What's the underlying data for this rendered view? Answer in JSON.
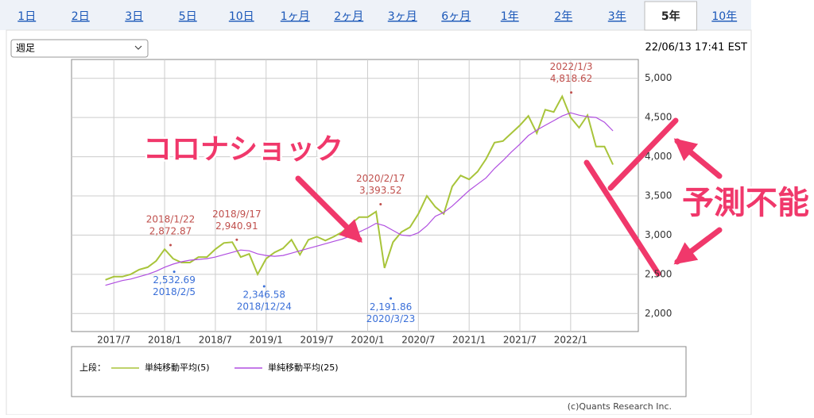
{
  "tabs": [
    "1日",
    "2日",
    "3日",
    "5日",
    "10日",
    "1ヶ月",
    "2ヶ月",
    "3ヶ月",
    "6ヶ月",
    "1年",
    "2年",
    "3年",
    "5年",
    "10年"
  ],
  "active_tab": 12,
  "period_select": "週足",
  "timestamp": "22/06/13 17:41 EST",
  "chart_data": {
    "type": "line",
    "x": [
      "2017/6",
      "2017/7",
      "2017/8",
      "2017/9",
      "2017/10",
      "2017/11",
      "2017/12",
      "2018/1",
      "2018/2",
      "2018/3",
      "2018/4",
      "2018/5",
      "2018/6",
      "2018/7",
      "2018/8",
      "2018/9",
      "2018/10",
      "2018/11",
      "2018/12",
      "2019/1",
      "2019/2",
      "2019/3",
      "2019/4",
      "2019/5",
      "2019/6",
      "2019/7",
      "2019/8",
      "2019/9",
      "2019/10",
      "2019/11",
      "2019/12",
      "2020/1",
      "2020/2",
      "2020/3",
      "2020/4",
      "2020/5",
      "2020/6",
      "2020/7",
      "2020/8",
      "2020/9",
      "2020/10",
      "2020/11",
      "2020/12",
      "2021/1",
      "2021/2",
      "2021/3",
      "2021/4",
      "2021/5",
      "2021/6",
      "2021/7",
      "2021/8",
      "2021/9",
      "2021/10",
      "2021/11",
      "2021/12",
      "2022/1",
      "2022/2",
      "2022/3",
      "2022/4",
      "2022/5",
      "2022/6"
    ],
    "series": [
      {
        "name": "単純移動平均(5)",
        "color": "#a8c43a",
        "values": [
          2430,
          2470,
          2470,
          2500,
          2560,
          2590,
          2670,
          2820,
          2700,
          2650,
          2650,
          2720,
          2720,
          2820,
          2900,
          2910,
          2720,
          2760,
          2500,
          2700,
          2780,
          2830,
          2940,
          2750,
          2940,
          2980,
          2930,
          2980,
          3040,
          3140,
          3230,
          3230,
          3300,
          2580,
          2910,
          3040,
          3100,
          3270,
          3500,
          3360,
          3270,
          3620,
          3760,
          3710,
          3810,
          3970,
          4180,
          4200,
          4300,
          4400,
          4520,
          4300,
          4600,
          4570,
          4770,
          4500,
          4370,
          4530,
          4130,
          4130,
          3900
        ]
      },
      {
        "name": "単純移動平均(25)",
        "color": "#b04ee0",
        "values": [
          2360,
          2390,
          2420,
          2440,
          2470,
          2500,
          2540,
          2590,
          2630,
          2660,
          2680,
          2690,
          2700,
          2720,
          2750,
          2780,
          2810,
          2800,
          2760,
          2740,
          2730,
          2740,
          2770,
          2800,
          2830,
          2860,
          2890,
          2920,
          2950,
          2990,
          3040,
          3090,
          3150,
          3120,
          3060,
          3000,
          2990,
          3030,
          3120,
          3240,
          3290,
          3370,
          3470,
          3570,
          3650,
          3730,
          3850,
          3950,
          4060,
          4160,
          4270,
          4340,
          4400,
          4460,
          4520,
          4560,
          4530,
          4510,
          4500,
          4440,
          4330
        ]
      }
    ],
    "xlim": [
      "2017/2",
      "2022/9"
    ],
    "ylim": [
      1770,
      5240
    ],
    "xticks": [
      "2017/7",
      "2018/1",
      "2018/7",
      "2019/1",
      "2019/7",
      "2020/1",
      "2020/7",
      "2021/1",
      "2021/7",
      "2022/1"
    ],
    "yticks": [
      {
        "value": 2000,
        "label": "2,000"
      },
      {
        "value": 2500,
        "label": "2,500"
      },
      {
        "value": 3000,
        "label": "3,000"
      },
      {
        "value": 3500,
        "label": "3,500"
      },
      {
        "value": 4000,
        "label": "4,000"
      },
      {
        "value": 4500,
        "label": "4,500"
      },
      {
        "value": 5000,
        "label": "5,000"
      }
    ],
    "grid": true,
    "legend_prefix": "上段：",
    "annotations": [
      {
        "date": "2018/1/22",
        "value": 2872.87,
        "label": "2,872.87",
        "color": "#c0504d"
      },
      {
        "date": "2018/9/17",
        "value": 2940.91,
        "label": "2,940.91",
        "color": "#c0504d"
      },
      {
        "date": "2020/2/17",
        "value": 3393.52,
        "label": "3,393.52",
        "color": "#c0504d"
      },
      {
        "date": "2022/1/3",
        "value": 4818.62,
        "label": "4,818.62",
        "color": "#c0504d"
      },
      {
        "date": "2018/2/5",
        "value": 2532.69,
        "label": "2,532.69",
        "color": "#3a6fd8"
      },
      {
        "date": "2018/12/24",
        "value": 2346.58,
        "label": "2,346.58",
        "color": "#3a6fd8"
      },
      {
        "date": "2020/3/23",
        "value": 2191.86,
        "label": "2,191.86",
        "color": "#3a6fd8"
      }
    ]
  },
  "copyright": "(c)Quants Research Inc.",
  "overlay": {
    "headline": "コロナショック",
    "forecast": "予測不能"
  }
}
